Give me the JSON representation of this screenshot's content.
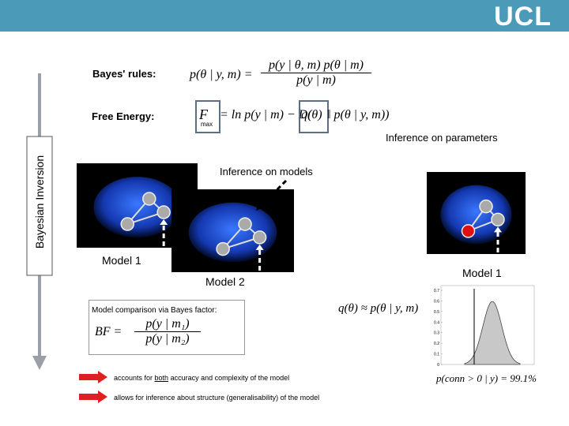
{
  "header": {
    "logo": "UCL"
  },
  "side_label": "Bayesian Inversion",
  "bayes_rule": {
    "label": "Bayes' rules:",
    "lhs": "p(θ | y, m) =",
    "numerator": "p(y | θ, m) p(θ | m)",
    "denominator": "p(y | m)"
  },
  "free_energy": {
    "label": "Free Energy:",
    "F": "F",
    "max": "max",
    "eq": "= ln p(y | m) − D(",
    "q": "q(θ)",
    "rest": "‖ p(θ | y, m))"
  },
  "inference_parameters": "Inference on parameters",
  "inference_models": "Inference on models",
  "models": [
    "Model 1",
    "Model 2",
    "Model 1"
  ],
  "model_comparison": {
    "label": "Model comparison via Bayes factor:",
    "lhs": "BF =",
    "numerator": "p(y | m₁)",
    "denominator": "p(y | m₂)"
  },
  "posterior": "q(θ) ≈ p(θ | y, m)",
  "plot": {
    "yticks": [
      0.7,
      0.6,
      0.5,
      0.4,
      0.3,
      0.2,
      0.1,
      0
    ]
  },
  "probability": "p(conn > 0 | y) = 99.1%",
  "bullets": [
    {
      "pre": "accounts for ",
      "em": "both",
      "post": " accuracy and complexity of the model"
    },
    {
      "text": "allows for inference about structure (generalisability) of the model"
    }
  ]
}
